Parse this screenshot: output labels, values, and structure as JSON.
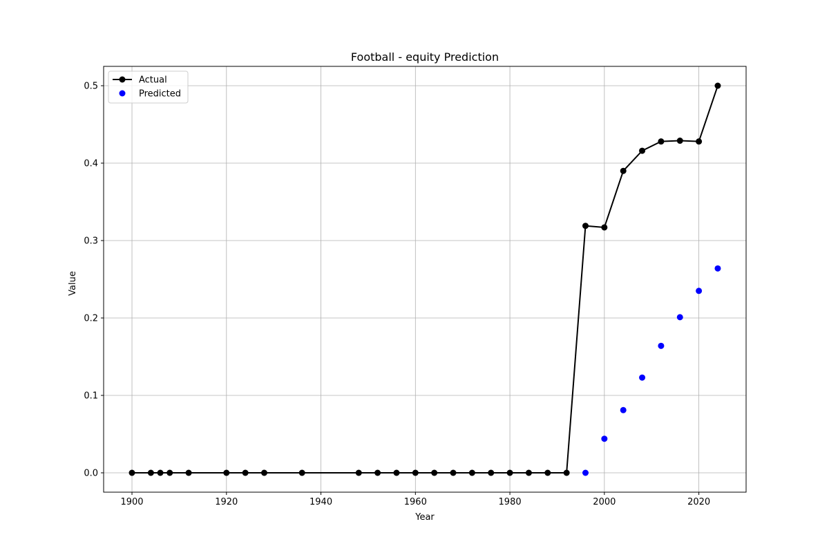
{
  "chart_data": {
    "type": "line",
    "title": "Football - equity Prediction",
    "xlabel": "Year",
    "ylabel": "Value",
    "xlim": [
      1894,
      2030
    ],
    "ylim": [
      -0.025,
      0.525
    ],
    "xticks": [
      1900,
      1920,
      1940,
      1960,
      1980,
      2000,
      2020
    ],
    "yticks": [
      0.0,
      0.1,
      0.2,
      0.3,
      0.4,
      0.5
    ],
    "ytick_labels": [
      "0.0",
      "0.1",
      "0.2",
      "0.3",
      "0.4",
      "0.5"
    ],
    "grid": true,
    "legend_position": "top-left",
    "series": [
      {
        "name": "Actual",
        "kind": "line-markers",
        "color": "#000000",
        "x": [
          1900,
          1904,
          1906,
          1908,
          1912,
          1920,
          1924,
          1928,
          1936,
          1948,
          1952,
          1956,
          1960,
          1964,
          1968,
          1972,
          1976,
          1980,
          1984,
          1988,
          1992,
          1996,
          2000,
          2004,
          2008,
          2012,
          2016,
          2020,
          2024
        ],
        "y": [
          0,
          0,
          0,
          0,
          0,
          0,
          0,
          0,
          0,
          0,
          0,
          0,
          0,
          0,
          0,
          0,
          0,
          0,
          0,
          0,
          0,
          0.319,
          0.317,
          0.39,
          0.416,
          0.428,
          0.429,
          0.428,
          0.5
        ]
      },
      {
        "name": "Predicted",
        "kind": "scatter",
        "color": "#0000ff",
        "x": [
          1996,
          2000,
          2004,
          2008,
          2012,
          2016,
          2020,
          2024
        ],
        "y": [
          0.0,
          0.044,
          0.081,
          0.123,
          0.164,
          0.201,
          0.235,
          0.264
        ]
      }
    ]
  }
}
